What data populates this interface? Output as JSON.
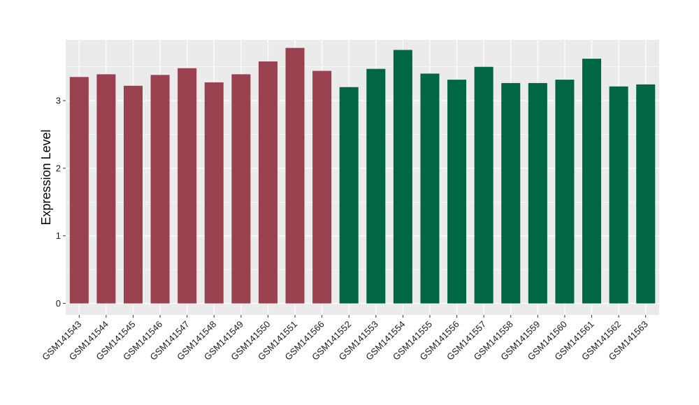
{
  "chart_data": {
    "type": "bar",
    "ylabel": "Expression Level",
    "xlabel": "",
    "ylim": [
      -0.17,
      3.9
    ],
    "yticks": [
      0,
      1,
      2,
      3
    ],
    "grid": true,
    "legend": "none",
    "colors": {
      "group_a": "#9A4150",
      "group_b": "#006644",
      "panel": "#EBEBEB",
      "grid": "#FFFFFF"
    },
    "categories": [
      "GSM141543",
      "GSM141544",
      "GSM141545",
      "GSM141546",
      "GSM141547",
      "GSM141548",
      "GSM141549",
      "GSM141550",
      "GSM141551",
      "GSM141566",
      "GSM141552",
      "GSM141553",
      "GSM141554",
      "GSM141555",
      "GSM141556",
      "GSM141557",
      "GSM141558",
      "GSM141559",
      "GSM141560",
      "GSM141561",
      "GSM141562",
      "GSM141563"
    ],
    "values": [
      3.35,
      3.39,
      3.22,
      3.38,
      3.48,
      3.27,
      3.39,
      3.58,
      3.78,
      3.44,
      3.2,
      3.47,
      3.75,
      3.4,
      3.31,
      3.5,
      3.26,
      3.26,
      3.31,
      3.62,
      3.21,
      3.24
    ],
    "groups": [
      "a",
      "a",
      "a",
      "a",
      "a",
      "a",
      "a",
      "a",
      "a",
      "a",
      "b",
      "b",
      "b",
      "b",
      "b",
      "b",
      "b",
      "b",
      "b",
      "b",
      "b",
      "b"
    ]
  }
}
